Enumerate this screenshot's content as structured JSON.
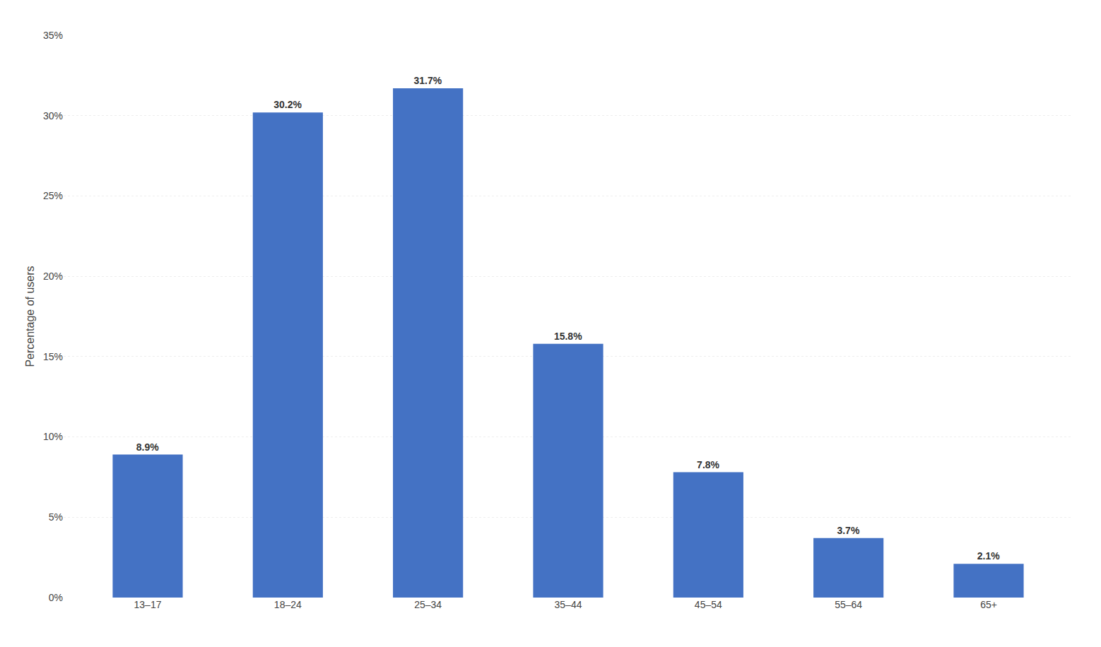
{
  "chart_data": {
    "type": "bar",
    "categories": [
      "13–17",
      "18–24",
      "25–34",
      "35–44",
      "45–54",
      "55–64",
      "65+"
    ],
    "values": [
      8.9,
      30.2,
      31.7,
      15.8,
      7.8,
      3.7,
      2.1
    ],
    "value_labels": [
      "8.9%",
      "30.2%",
      "31.7%",
      "15.8%",
      "7.8%",
      "3.7%",
      "2.1%"
    ],
    "data_labels": true,
    "color": "#4472c4",
    "ylabel": "Percentage of users",
    "ylim": [
      0,
      35
    ],
    "yticks": [
      {
        "value": 0,
        "label": "0%"
      },
      {
        "value": 5,
        "label": "5%"
      },
      {
        "value": 10,
        "label": "10%"
      },
      {
        "value": 15,
        "label": "15%"
      },
      {
        "value": 20,
        "label": "20%"
      },
      {
        "value": 25,
        "label": "25%"
      },
      {
        "value": 30,
        "label": "30%"
      },
      {
        "value": 35,
        "label": "35%"
      }
    ],
    "grid": true
  }
}
